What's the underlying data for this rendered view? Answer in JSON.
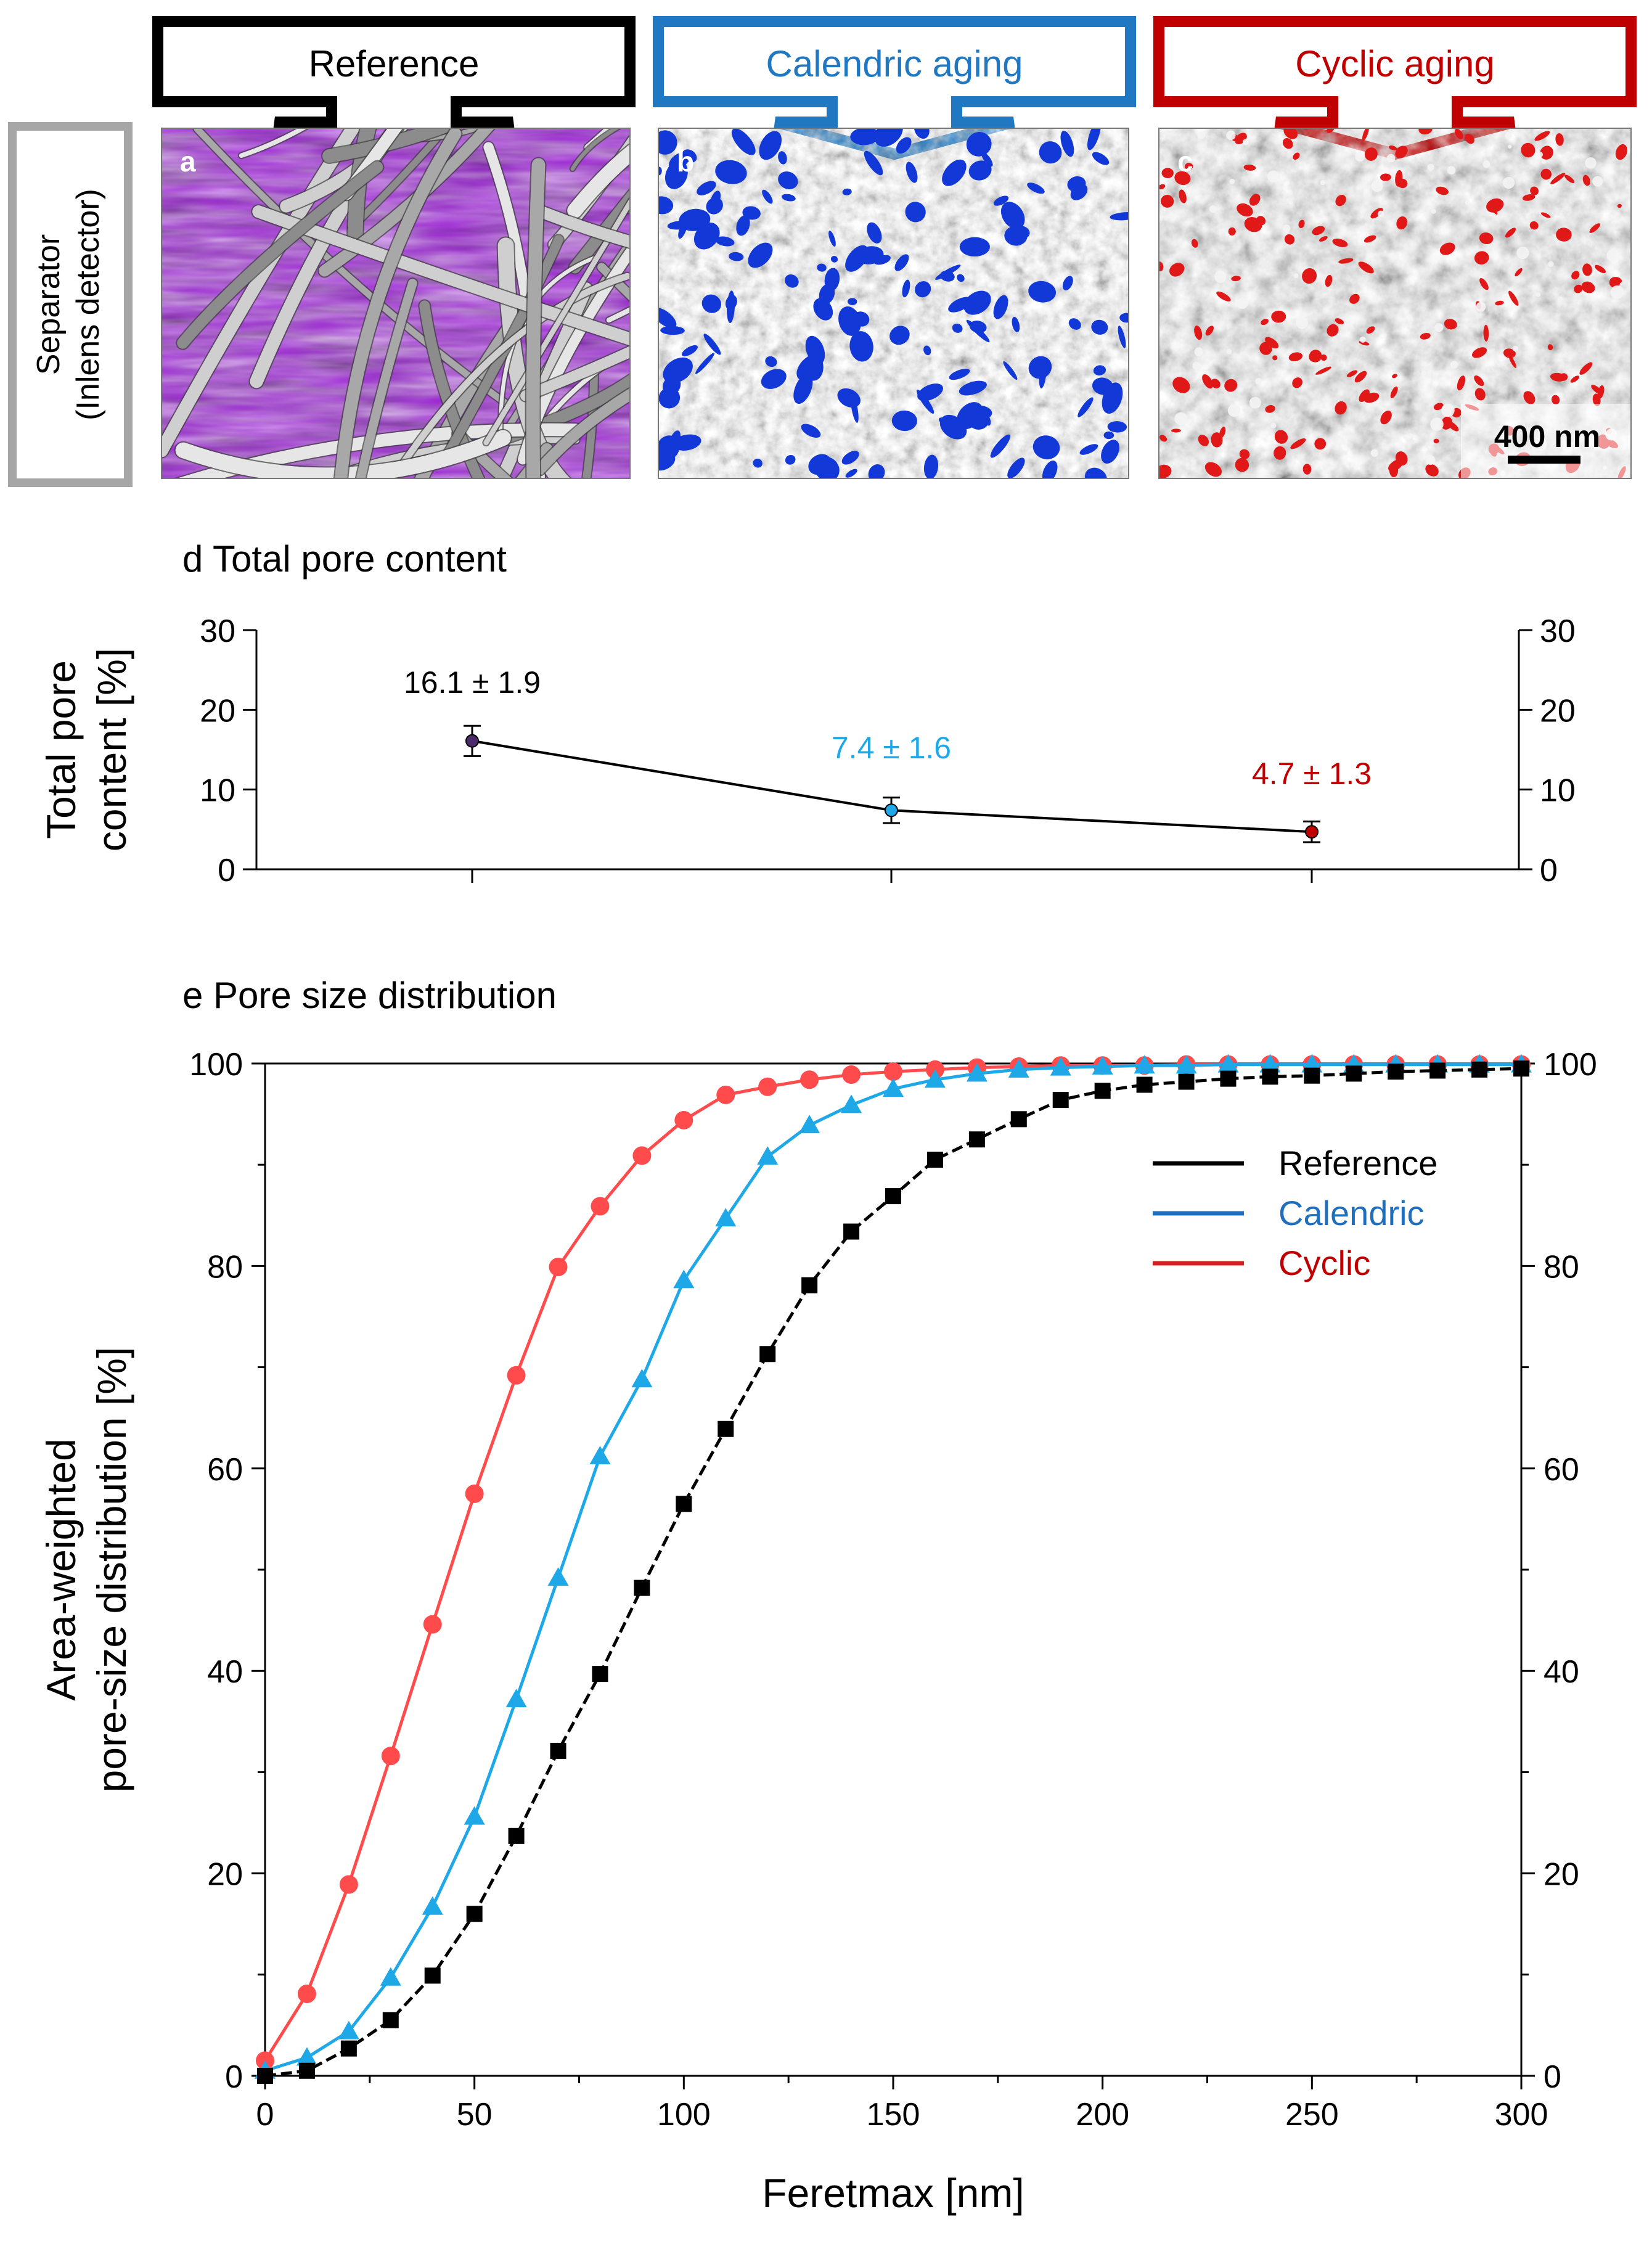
{
  "panel_headers": [
    {
      "label": "Reference",
      "color": "#000000",
      "text_color": "#000000"
    },
    {
      "label": "Calendric aging",
      "color": "#1f78c1",
      "text_color": "#1f78c1"
    },
    {
      "label": "Cyclic aging",
      "color": "#c00000",
      "text_color": "#c00000"
    }
  ],
  "row_label": {
    "line1": "Separator",
    "line2": "(Inlens detector)"
  },
  "micrographs": [
    {
      "letter": "a",
      "pore_color": "#9b1fd6"
    },
    {
      "letter": "b",
      "pore_color": "#1238d8"
    },
    {
      "letter": "c",
      "pore_color": "#e01818"
    }
  ],
  "scale_bar": {
    "label": "400 nm"
  },
  "chart_data": [
    {
      "type": "line",
      "title": "d Total pore content",
      "ylabel": "Total pore content [%]",
      "ylim": [
        0,
        30
      ],
      "yticks": [
        0,
        10,
        20,
        30
      ],
      "x": [
        0,
        1,
        2
      ],
      "values": [
        16.1,
        7.4,
        4.7
      ],
      "errors": [
        1.9,
        1.6,
        1.3
      ],
      "labels": [
        "16.1 ± 1.9",
        "7.4 ± 1.6",
        "4.7 ± 1.3"
      ],
      "point_colors": [
        "#4a2a6a",
        "#1fa8e8",
        "#c00000"
      ],
      "label_colors": [
        "#000000",
        "#1fa8e8",
        "#c00000"
      ],
      "line_color": "#000000",
      "grid": false
    },
    {
      "type": "line",
      "title": "e Pore size distribution",
      "xlabel": "Feretmax [nm]",
      "ylabel": "Area-weighted pore-size distribution [%]",
      "xlim": [
        0,
        300
      ],
      "ylim": [
        0,
        100
      ],
      "xticks": [
        0,
        50,
        100,
        150,
        200,
        250,
        300
      ],
      "yticks": [
        0,
        20,
        40,
        60,
        80,
        100
      ],
      "grid": false,
      "legend_position": "top-right",
      "series": [
        {
          "name": "Reference",
          "color": "#000000",
          "marker": "square",
          "dashed": true,
          "x": [
            0,
            10,
            20,
            30,
            40,
            50,
            60,
            70,
            80,
            90,
            100,
            110,
            120,
            130,
            140,
            150,
            160,
            170,
            180,
            190,
            200,
            210,
            220,
            230,
            240,
            250,
            260,
            270,
            280,
            290,
            300
          ],
          "values": [
            0,
            0.5,
            2.7,
            5.5,
            9.9,
            16,
            23.7,
            32.1,
            39.7,
            48.2,
            56.5,
            63.9,
            71.3,
            78.1,
            83.4,
            86.9,
            90.5,
            92.5,
            94.5,
            96.4,
            97.3,
            97.9,
            98.2,
            98.5,
            98.7,
            98.8,
            99,
            99.2,
            99.3,
            99.4,
            99.5
          ]
        },
        {
          "name": "Calendric",
          "color": "#1fa8e8",
          "legend_color": "#1f6fbf",
          "legend_text_color": "#1f6fbf",
          "marker": "triangle",
          "dashed": false,
          "x": [
            0,
            10,
            20,
            30,
            40,
            50,
            60,
            70,
            80,
            90,
            100,
            110,
            120,
            130,
            140,
            150,
            160,
            170,
            180,
            190,
            200,
            210,
            220,
            230,
            240,
            250,
            260,
            270,
            280,
            290,
            300
          ],
          "values": [
            0.5,
            1.8,
            4.4,
            9.7,
            16.7,
            25.6,
            37.2,
            49.2,
            61.2,
            68.8,
            78.6,
            84.7,
            90.8,
            93.9,
            95.9,
            97.5,
            98.4,
            99,
            99.4,
            99.6,
            99.7,
            99.8,
            99.8,
            99.9,
            99.9,
            99.9,
            99.9,
            99.9,
            99.9,
            99.9,
            99.9
          ]
        },
        {
          "name": "Cyclic",
          "color": "#ff4b4b",
          "legend_color": "#d42020",
          "legend_text_color": "#c00000",
          "marker": "circle",
          "dashed": false,
          "x": [
            0,
            10,
            20,
            30,
            40,
            50,
            60,
            70,
            80,
            90,
            100,
            110,
            120,
            130,
            140,
            150,
            160,
            170,
            180,
            190,
            200,
            210,
            220,
            230,
            240,
            250,
            260,
            270,
            280,
            290,
            300
          ],
          "values": [
            1.5,
            8.1,
            18.9,
            31.6,
            44.6,
            57.5,
            69.2,
            79.9,
            85.9,
            90.9,
            94.4,
            96.9,
            97.7,
            98.4,
            98.9,
            99.2,
            99.4,
            99.6,
            99.7,
            99.8,
            99.8,
            99.8,
            99.9,
            99.9,
            99.9,
            99.9,
            99.9,
            99.9,
            99.9,
            99.9,
            99.9
          ]
        }
      ]
    }
  ]
}
